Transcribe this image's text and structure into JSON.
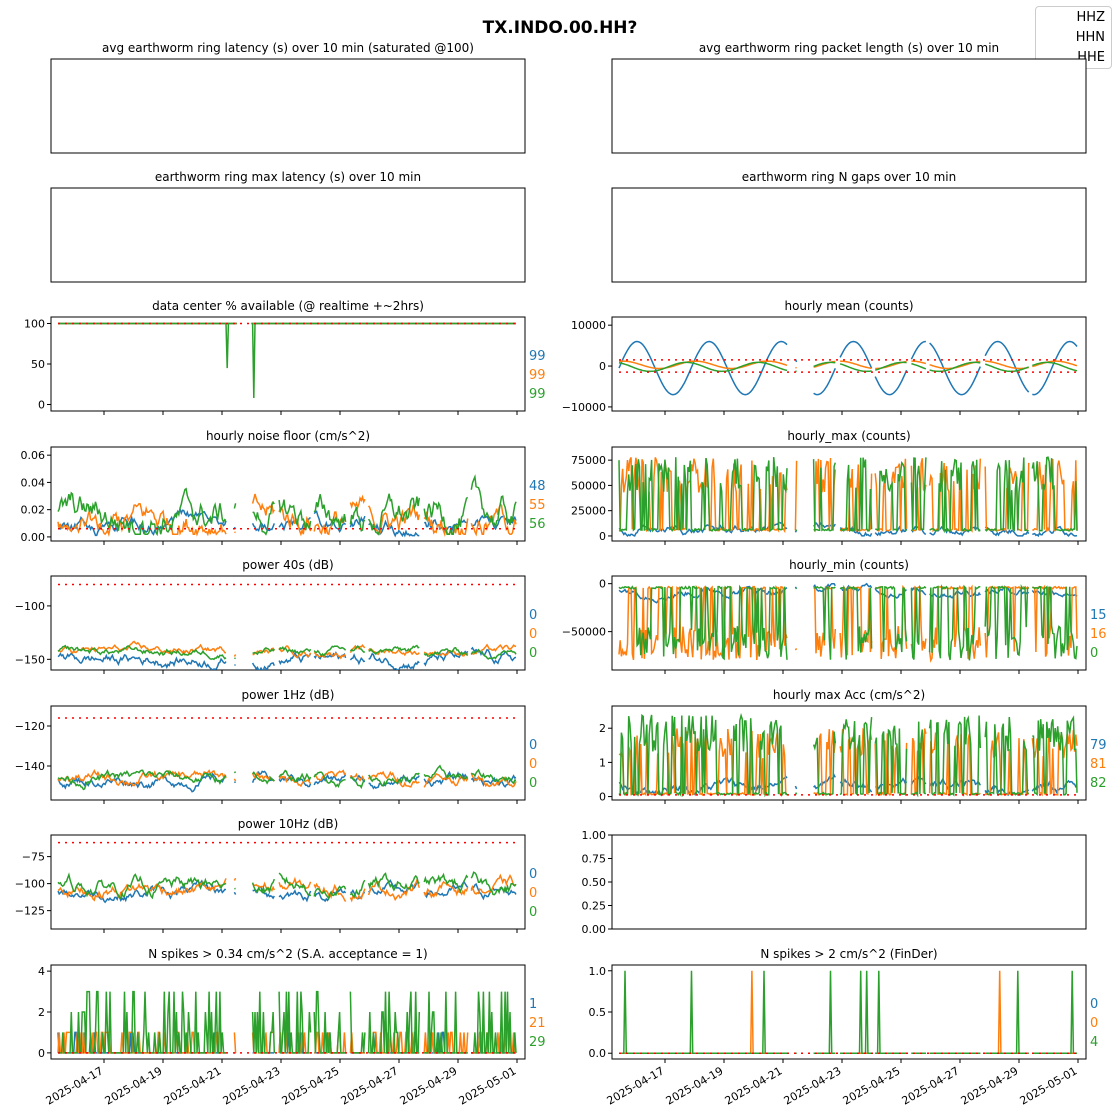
{
  "page_title": "TX.INDO.00.HH?",
  "legend": [
    "HHZ",
    "HHN",
    "HHE"
  ],
  "colors": {
    "HHZ": "#1f77b4",
    "HHN": "#ff7f0e",
    "HHE": "#2ca02c",
    "threshold": "#ff0000"
  },
  "chart_data": [
    {
      "id": "avg_latency",
      "type": "line",
      "title": "avg earthworm ring latency (s)   over 10 min (saturated @100)",
      "series": [],
      "yticks": [],
      "empty": true
    },
    {
      "id": "avg_packet_length",
      "type": "line",
      "title": "avg earthworm ring packet length (s)   over 10 min",
      "series": [],
      "yticks": [],
      "empty": true
    },
    {
      "id": "max_latency",
      "type": "line",
      "title": "earthworm ring max latency (s)   over 10 min",
      "series": [],
      "yticks": [],
      "empty": true
    },
    {
      "id": "n_gaps",
      "type": "line",
      "title": "earthworm ring N gaps   over 10 min",
      "series": [],
      "yticks": [],
      "empty": true
    },
    {
      "id": "availability",
      "type": "line",
      "title": "data center % available (@ realtime +~2hrs)",
      "ylim": [
        -8,
        108
      ],
      "yticks": [
        "100",
        "50",
        "0"
      ],
      "threshold": [
        100
      ],
      "side_values": [
        "99",
        "99",
        "99"
      ],
      "profile": "avail"
    },
    {
      "id": "hourly_mean",
      "type": "line",
      "title": "hourly mean (counts)",
      "ylim": [
        -11000,
        12000
      ],
      "yticks": [
        "10000",
        "0",
        "−10000"
      ],
      "threshold": [
        1500,
        -1500
      ],
      "side_values": [],
      "profile": "mean"
    },
    {
      "id": "noise_floor",
      "type": "line",
      "title": "hourly noise floor (cm/s^2)",
      "ylim": [
        -0.003,
        0.066
      ],
      "yticks": [
        "0.06",
        "0.04",
        "0.02",
        "0.00"
      ],
      "threshold": [
        0.006
      ],
      "side_values": [
        "48",
        "55",
        "56"
      ],
      "profile": "noise"
    },
    {
      "id": "hourly_max",
      "type": "line",
      "title": "hourly_max (counts)",
      "ylim": [
        -5000,
        88000
      ],
      "yticks": [
        "75000",
        "50000",
        "25000",
        "0"
      ],
      "threshold": [],
      "side_values": [],
      "profile": "hmax"
    },
    {
      "id": "power_40s",
      "type": "line",
      "title": "power 40s (dB)",
      "ylim": [
        -160,
        -72
      ],
      "yticks": [
        "−100",
        "−150"
      ],
      "threshold": [
        -80
      ],
      "side_values": [
        "0",
        "0",
        "0"
      ],
      "profile": "p40"
    },
    {
      "id": "hourly_min",
      "type": "line",
      "title": "hourly_min (counts)",
      "ylim": [
        -90000,
        8000
      ],
      "yticks": [
        "0",
        "−50000"
      ],
      "threshold": [],
      "side_values": [
        "15",
        "16",
        "0"
      ],
      "profile": "hmin"
    },
    {
      "id": "power_1hz",
      "type": "line",
      "title": "power 1Hz (dB)",
      "ylim": [
        -157,
        -110
      ],
      "yticks": [
        "−120",
        "−140"
      ],
      "threshold": [
        -116
      ],
      "side_values": [
        "0",
        "0",
        "0"
      ],
      "profile": "p1"
    },
    {
      "id": "max_acc",
      "type": "line",
      "title": "hourly max Acc (cm/s^2)",
      "ylim": [
        -0.1,
        2.65
      ],
      "yticks": [
        "2",
        "1",
        "0"
      ],
      "threshold": [
        0.05
      ],
      "side_values": [
        "79",
        "81",
        "82"
      ],
      "profile": "acc"
    },
    {
      "id": "power_10hz",
      "type": "line",
      "title": "power 10Hz (dB)",
      "ylim": [
        -142,
        -55
      ],
      "yticks": [
        "−75",
        "−100",
        "−125"
      ],
      "threshold": [
        -62
      ],
      "side_values": [
        "0",
        "0",
        "0"
      ],
      "profile": "p10"
    },
    {
      "id": "empty_axes",
      "type": "line",
      "title": "",
      "ylim": [
        0,
        1
      ],
      "yticks": [
        "1.00",
        "0.75",
        "0.50",
        "0.25",
        "0.00"
      ],
      "series": [],
      "empty": true
    },
    {
      "id": "spikes_sa",
      "type": "line",
      "title": "N spikes > 0.34 cm/s^2 (S.A. acceptance = 1)",
      "ylim": [
        -0.3,
        4.3
      ],
      "yticks": [
        "4",
        "2",
        "0"
      ],
      "threshold": [
        0
      ],
      "side_values": [
        "1",
        "21",
        "29"
      ],
      "profile": "spk1"
    },
    {
      "id": "spikes_finder",
      "type": "line",
      "title": "N spikes > 2 cm/s^2 (FinDer)",
      "ylim": [
        -0.07,
        1.07
      ],
      "yticks": [
        "1.0",
        "0.5",
        "0.0"
      ],
      "threshold": [
        0
      ],
      "side_values": [
        "0",
        "0",
        "4"
      ],
      "profile": "spk2"
    }
  ],
  "x_axis": {
    "start": "2025-04-16",
    "end": "2025-05-01T20:00",
    "tick_labels": [
      "2025-04-17",
      "2025-04-19",
      "2025-04-21",
      "2025-04-23",
      "2025-04-25",
      "2025-04-27",
      "2025-04-29",
      "2025-05-01"
    ]
  }
}
